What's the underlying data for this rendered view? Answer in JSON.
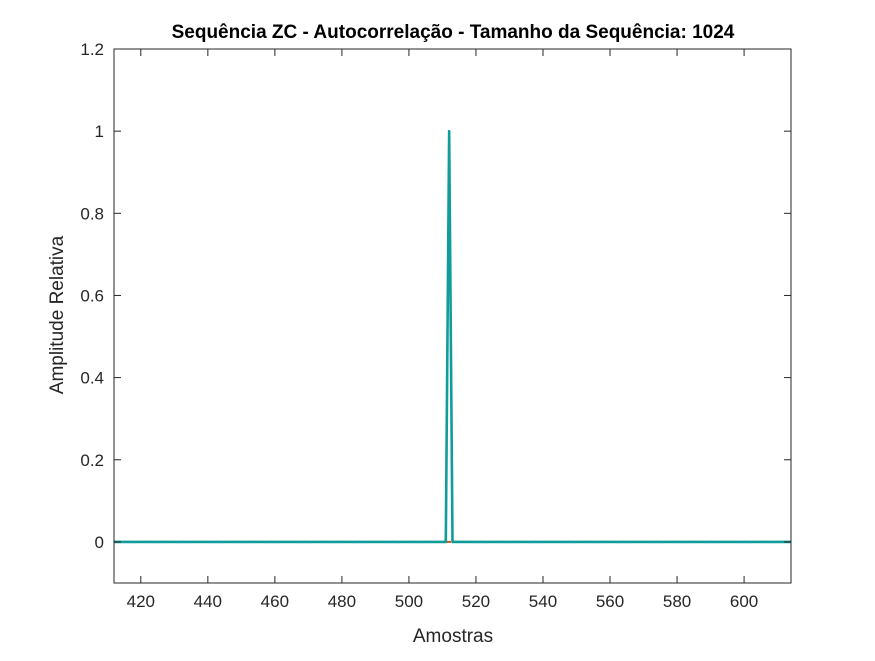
{
  "chart_data": {
    "type": "line",
    "title": "Sequência ZC - Autocorrelação - Tamanho da Sequência: 1024",
    "xlabel": "Amostras",
    "ylabel": "Amplitude Relativa",
    "xlim": [
      412,
      614
    ],
    "ylim": [
      -0.1,
      1.2
    ],
    "grid": false,
    "x_ticks": [
      420,
      440,
      460,
      480,
      500,
      520,
      540,
      560,
      580,
      600
    ],
    "x_tick_labels": [
      "420",
      "440",
      "460",
      "480",
      "500",
      "520",
      "540",
      "560",
      "580",
      "600"
    ],
    "y_ticks": [
      0,
      0.2,
      0.4,
      0.6,
      0.8,
      1,
      1.2
    ],
    "y_tick_labels": [
      "0",
      "0.2",
      "0.4",
      "0.6",
      "0.8",
      "1",
      "1.2"
    ],
    "series": [
      {
        "color": "#d95319",
        "style": "dashed",
        "x": [
          412,
          614
        ],
        "y": [
          0,
          0
        ]
      },
      {
        "color": "#119c9c",
        "style": "solid",
        "x": [
          412,
          511,
          512,
          513,
          614
        ],
        "y": [
          0,
          0,
          1,
          0,
          0
        ]
      }
    ]
  }
}
